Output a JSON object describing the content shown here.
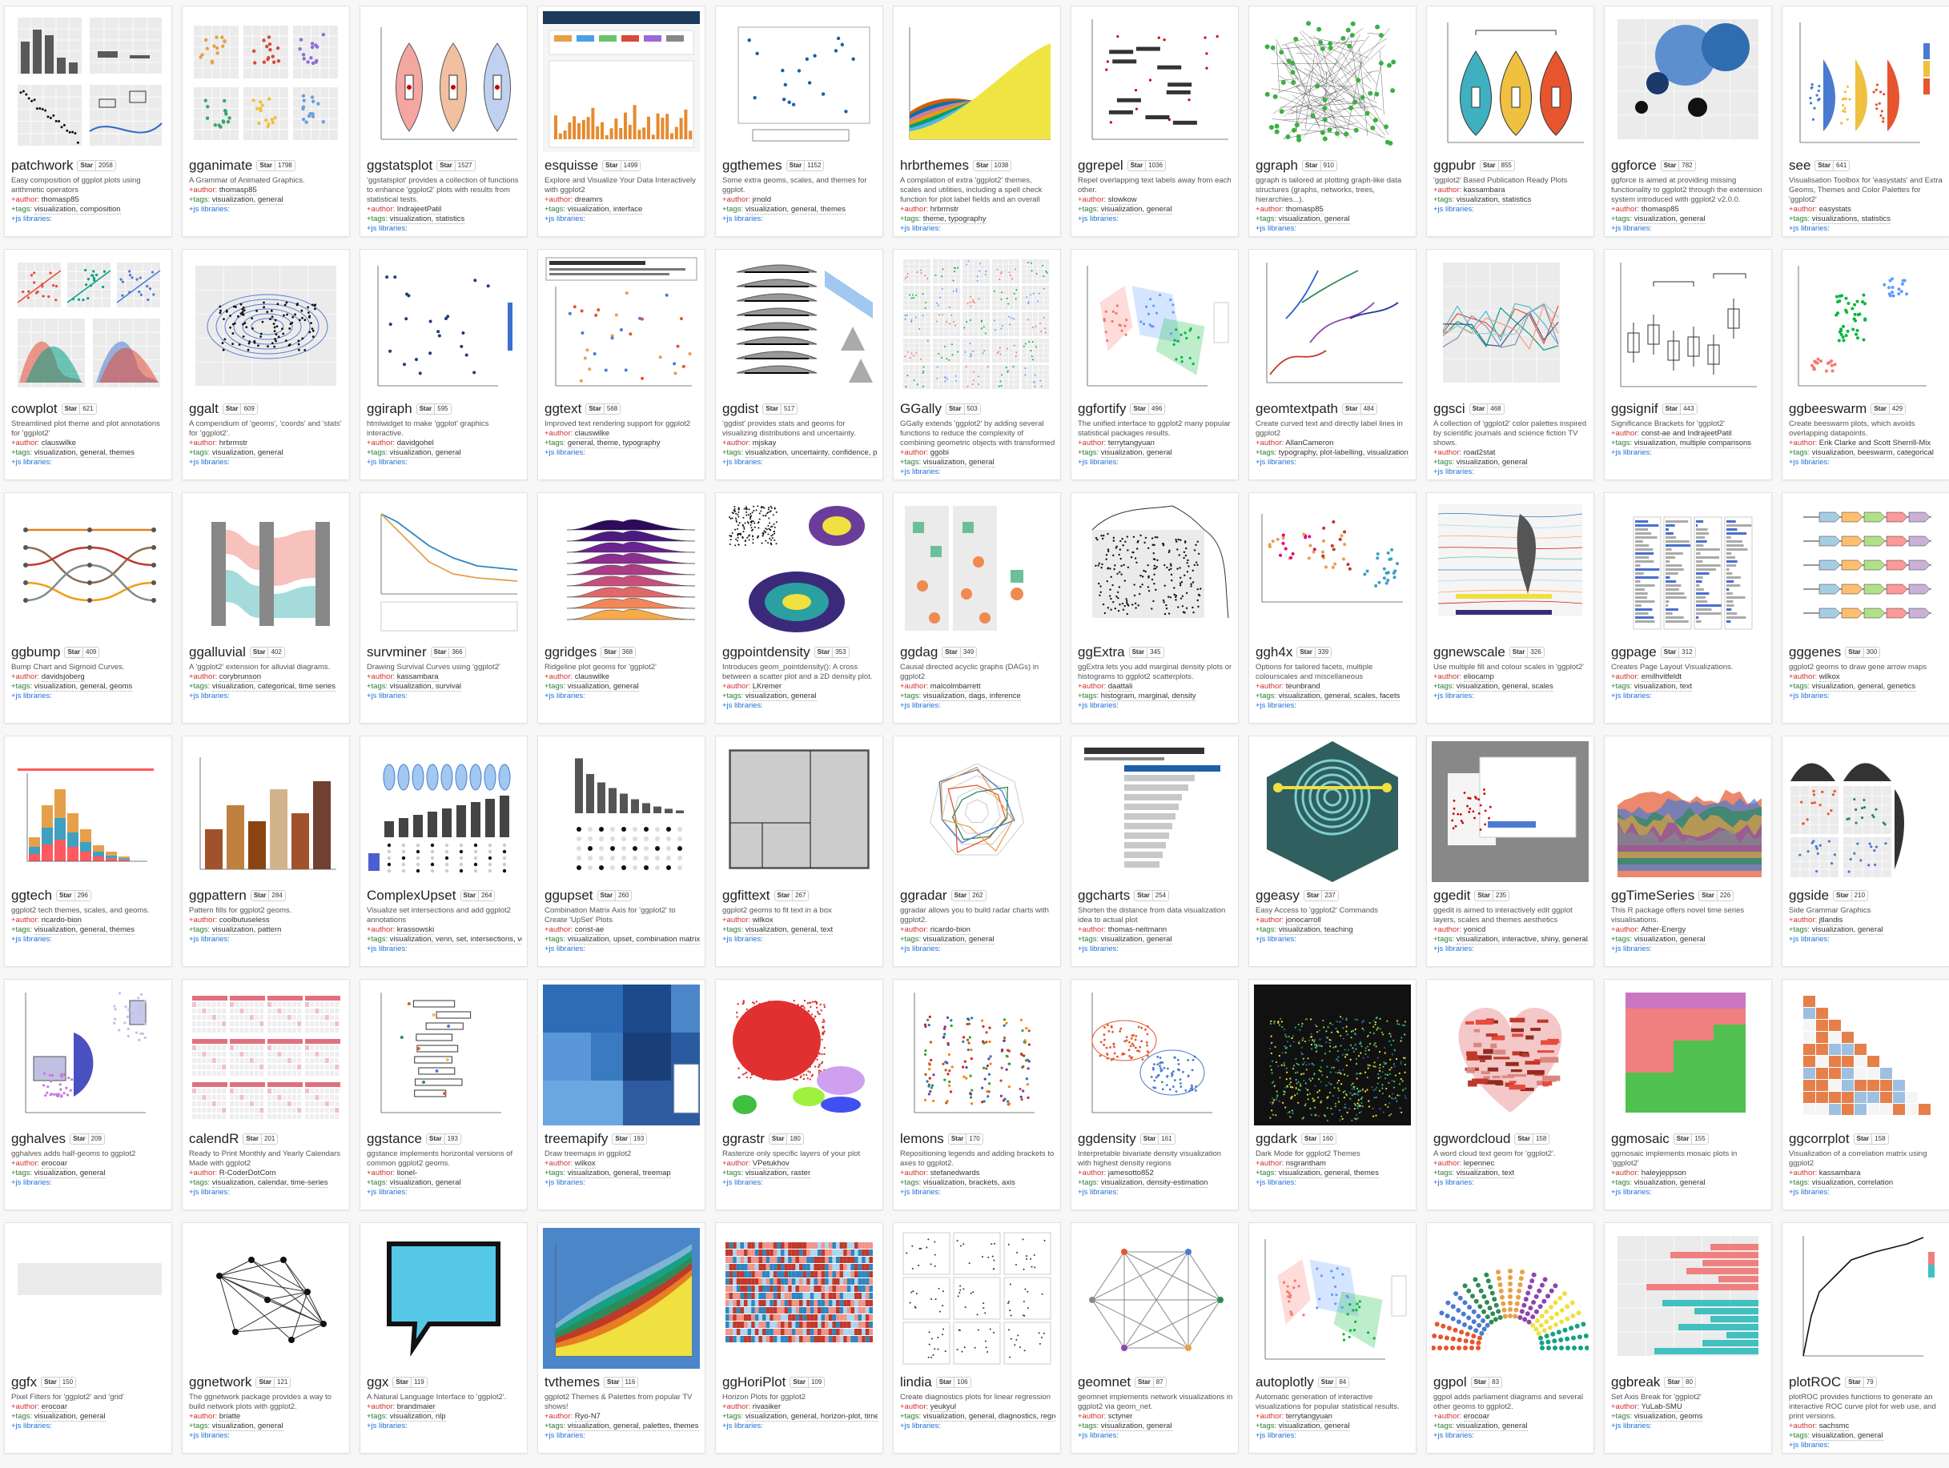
{
  "star_label": "Star",
  "labels": {
    "author": "+author:",
    "tags": "+tags:",
    "js": "+js libraries:"
  },
  "cards": [
    {
      "name": "patchwork",
      "stars": "2058",
      "desc": "Easy composition of ggplot plots using arithmetic operators",
      "author": "thomasp85",
      "tags": "visualization, composition",
      "thumb": "patch"
    },
    {
      "name": "gganimate",
      "stars": "1798",
      "desc": "A Grammar of Animated Graphics.",
      "author": "thomasp85",
      "tags": "visualization, general",
      "thumb": "facets"
    },
    {
      "name": "ggstatsplot",
      "stars": "1527",
      "desc": "'ggstatsplot' provides a collection of functions to enhance 'ggplot2' plots with results from statistical tests.",
      "author": "IndrajeetPatil",
      "tags": "visualization, statistics",
      "thumb": "violin"
    },
    {
      "name": "esquisse",
      "stars": "1499",
      "desc": "Explore and Visualize Your Data Interactively with ggplot2",
      "author": "dreamrs",
      "tags": "visualization, interface",
      "thumb": "app"
    },
    {
      "name": "ggthemes",
      "stars": "1152",
      "desc": "Some extra geoms, scales, and themes for ggplot.",
      "author": "jrnold",
      "tags": "visualization, general, themes",
      "thumb": "scatter-blue"
    },
    {
      "name": "hrbrthemes",
      "stars": "1038",
      "desc": "A compilation of extra 'ggplot2' themes, scales and utilities, including a spell check function for plot label fields and an overall emphasis on typography.",
      "author": "hrbrmstr",
      "tags": "theme, typography",
      "thumb": "area"
    },
    {
      "name": "ggrepel",
      "stars": "1036",
      "desc": "Repel overlapping text labels away from each other.",
      "author": "slowkow",
      "tags": "visualization, general",
      "thumb": "repel"
    },
    {
      "name": "ggraph",
      "stars": "910",
      "desc": "ggraph is tailored at plotting graph-like data structures (graphs, networks, trees, hierarchies...).",
      "author": "thomasp85",
      "tags": "visualization, general",
      "thumb": "graph-green"
    },
    {
      "name": "ggpubr",
      "stars": "855",
      "desc": "'ggplot2' Based Publication Ready Plots",
      "author": "kassambara",
      "tags": "visualization, statistics",
      "thumb": "violin3"
    },
    {
      "name": "ggforce",
      "stars": "782",
      "desc": "ggforce is aimed at providing missing functionality to ggplot2 through the extension system introduced with ggplot2 v2.0.0.",
      "author": "thomasp85",
      "tags": "visualization, general",
      "thumb": "bubbles"
    },
    {
      "name": "see",
      "stars": "641",
      "desc": "Visualisation Toolbox for 'easystats' and Extra Geoms, Themes and Color Palettes for 'ggplot2'",
      "author": "easystats",
      "tags": "visualizations, statistics",
      "thumb": "halfviolin"
    },
    {
      "name": "cowplot",
      "stars": "621",
      "desc": "Streamlined plot theme and plot annotations for 'ggplot2'",
      "author": "clauswilke",
      "tags": "visualization, general, themes",
      "thumb": "cow"
    },
    {
      "name": "ggalt",
      "stars": "609",
      "desc": "A compendium of 'geoms', 'coords' and 'stats' for 'ggplot2'.",
      "author": "hrbrmstr",
      "tags": "visualization, general",
      "thumb": "contour"
    },
    {
      "name": "ggiraph",
      "stars": "595",
      "desc": "htmlwidget to make 'ggplot' graphics interactive.",
      "author": "davidgohel",
      "tags": "visualization, general",
      "thumb": "scatter-navy"
    },
    {
      "name": "ggtext",
      "stars": "568",
      "desc": "Improved text rendering support for ggplot2",
      "author": "clauswilke",
      "tags": "general, theme, typography",
      "thumb": "text-scatter"
    },
    {
      "name": "ggdist",
      "stars": "517",
      "desc": "'ggdist' provides stats and geoms for visualizing distributions and uncertainty.",
      "author": "mjskay",
      "tags": "visualization, uncertainty, confidence, probability",
      "thumb": "dist"
    },
    {
      "name": "GGally",
      "stars": "503",
      "desc": "GGally extends 'ggplot2' by adding several functions to reduce the complexity of combining geometric objects with transformed data.",
      "author": "ggobi",
      "tags": "visualization, general",
      "thumb": "matrix"
    },
    {
      "name": "ggfortify",
      "stars": "496",
      "desc": "The unified interface to ggplot2 many popular statistical packages results.",
      "author": "terrytangyuan",
      "tags": "visualization, general",
      "thumb": "pca"
    },
    {
      "name": "geomtextpath",
      "stars": "484",
      "desc": "Create curved text and directly label lines in ggplot2",
      "author": "AllanCameron",
      "tags": "typography, plot-labelling, visualization",
      "thumb": "textpath"
    },
    {
      "name": "ggsci",
      "stars": "468",
      "desc": "A collection of 'ggplot2' color palettes inspired by scientific journals and science fiction TV shows.",
      "author": "road2stat",
      "tags": "visualization, general",
      "thumb": "lines"
    },
    {
      "name": "ggsignif",
      "stars": "443",
      "desc": "Significance Brackets for 'ggplot2'",
      "author": "const-ae and IndrajeetPatil",
      "tags": "visualization, multiple comparisons",
      "thumb": "boxes"
    },
    {
      "name": "ggbeeswarm",
      "stars": "429",
      "desc": "Create beeswarm plots, which avoids overlapping datapoints.",
      "author": "Erik Clarke and Scott Sherrill-Mix",
      "tags": "visualization, beeswarm, categorical",
      "thumb": "beeswarm"
    },
    {
      "name": "ggbump",
      "stars": "409",
      "desc": "Bump Chart and Sigmoid Curves.",
      "author": "davidsjoberg",
      "tags": "visualization, general, geoms",
      "thumb": "bump"
    },
    {
      "name": "ggalluvial",
      "stars": "402",
      "desc": "A 'ggplot2' extension for alluvial diagrams.",
      "author": "corybrunson",
      "tags": "visualization, categorical, time series",
      "thumb": "alluvial"
    },
    {
      "name": "survminer",
      "stars": "366",
      "desc": "Drawing Survival Curves using 'ggplot2'",
      "author": "kassambara",
      "tags": "visualization, survival",
      "thumb": "survival"
    },
    {
      "name": "ggridges",
      "stars": "368",
      "desc": "Ridgeline plot geoms for 'ggplot2'",
      "author": "clauswilke",
      "tags": "visualization, general",
      "thumb": "ridges"
    },
    {
      "name": "ggpointdensity",
      "stars": "353",
      "desc": "Introduces geom_pointdensity(): A cross between a scatter plot and a 2D density plot.",
      "author": "LKremer",
      "tags": "visualization, general",
      "thumb": "pointdensity"
    },
    {
      "name": "ggdag",
      "stars": "349",
      "desc": "Causal directed acyclic graphs (DAGs) in ggplot2",
      "author": "malcolmbarrett",
      "tags": "visualization, dags, inference",
      "thumb": "dag"
    },
    {
      "name": "ggExtra",
      "stars": "345",
      "desc": "ggExtra lets you add marginal density plots or histograms to ggplot2 scatterplots.",
      "author": "daattali",
      "tags": "histogram, marginal, density",
      "thumb": "marginal"
    },
    {
      "name": "ggh4x",
      "stars": "339",
      "desc": "Options for tailored facets, multiple colourscales and miscellaneous",
      "author": "teunbrand",
      "tags": "visualization, general, scales, facets",
      "thumb": "h4x"
    },
    {
      "name": "ggnewscale",
      "stars": "326",
      "desc": "Use multiple fill and colour scales in 'ggplot2'",
      "author": "eliocamp",
      "tags": "visualization, general, scales",
      "thumb": "map"
    },
    {
      "name": "ggpage",
      "stars": "312",
      "desc": "Creates Page Layout Visualizations.",
      "author": "emilhvitfeldt",
      "tags": "visualization, text",
      "thumb": "pages"
    },
    {
      "name": "gggenes",
      "stars": "300",
      "desc": "ggplot2 geoms to draw gene arrow maps",
      "author": "wilkox",
      "tags": "visualization, general, genetics",
      "thumb": "genes"
    },
    {
      "name": "ggtech",
      "stars": "296",
      "desc": "ggplot2 tech themes, scales, and geoms.",
      "author": "ricardo-bion",
      "tags": "visualization, general, themes",
      "thumb": "airbnb"
    },
    {
      "name": "ggpattern",
      "stars": "284",
      "desc": "Pattern fills for ggplot2 geoms.",
      "author": "coolbutuseless",
      "tags": "visualization, pattern",
      "thumb": "pattern"
    },
    {
      "name": "ComplexUpset",
      "stars": "264",
      "desc": "Visualize set intersections and add ggplot2 annotations",
      "author": "krassowski",
      "tags": "visualization, venn, set, intersections, venn-diagram, upset",
      "thumb": "upsetx"
    },
    {
      "name": "ggupset",
      "stars": "260",
      "desc": "Combination Matrix Axis for 'ggplot2' to Create 'UpSet' Plots",
      "author": "const-ae",
      "tags": "visualization, upset, combination matrix",
      "thumb": "upset"
    },
    {
      "name": "ggfittext",
      "stars": "267",
      "desc": "ggplot2 geoms to fit text in a box",
      "author": "wilkox",
      "tags": "visualization, general, text",
      "thumb": "fittext"
    },
    {
      "name": "ggradar",
      "stars": "262",
      "desc": "ggradar allows you to build radar charts with ggplot2.",
      "author": "ricardo-bion",
      "tags": "visualization, general",
      "thumb": "radar"
    },
    {
      "name": "ggcharts",
      "stars": "254",
      "desc": "Shorten the distance from data visualization idea to actual plot",
      "author": "thomas-neitmann",
      "tags": "visualization, general",
      "thumb": "hbar"
    },
    {
      "name": "ggeasy",
      "stars": "237",
      "desc": "Easy Access to 'ggplot2' Commands",
      "author": "jonocarroll",
      "tags": "visualization, teaching",
      "thumb": "ggeasy"
    },
    {
      "name": "ggedit",
      "stars": "235",
      "desc": "ggedit is aimed to interactively edit ggplot layers, scales and themes aesthetics",
      "author": "yonicd",
      "tags": "visualization, interactive, shiny, general, themes",
      "thumb": "edit"
    },
    {
      "name": "ggTimeSeries",
      "stars": "226",
      "desc": "This R package offers novel time series visualisations.",
      "author": "Ather-Energy",
      "tags": "visualization, general",
      "thumb": "stream"
    },
    {
      "name": "ggside",
      "stars": "210",
      "desc": "Side Grammar Graphics",
      "author": "jtlandis",
      "tags": "visualization, general",
      "thumb": "side"
    },
    {
      "name": "gghalves",
      "stars": "209",
      "desc": "gghalves adds half-geoms to ggplot2",
      "author": "erocoar",
      "tags": "visualization, general",
      "thumb": "halves"
    },
    {
      "name": "calendR",
      "stars": "201",
      "desc": "Ready to Print Monthly and Yearly Calendars Made with ggplot2",
      "author": "R-CoderDotCom",
      "tags": "visualization, calendar, time-series",
      "thumb": "calendar"
    },
    {
      "name": "ggstance",
      "stars": "193",
      "desc": "ggstance implements horizontal versions of common ggplot2 geoms.",
      "author": "lionel-",
      "tags": "visualization, general",
      "thumb": "stance"
    },
    {
      "name": "treemapify",
      "stars": "193",
      "desc": "Draw treemaps in ggplot2",
      "author": "wilkox",
      "tags": "visualization, general, treemap",
      "thumb": "treemap"
    },
    {
      "name": "ggrastr",
      "stars": "180",
      "desc": "Rasterize only specific layers of your plot",
      "author": "VPetukhov",
      "tags": "visualization, raster",
      "thumb": "rastr"
    },
    {
      "name": "lemons",
      "stars": "170",
      "desc": "Repositioning legends and adding brackets to axes to ggplot2.",
      "author": "stefanedwards",
      "tags": "visualization, brackets, axis",
      "thumb": "lemons"
    },
    {
      "name": "ggdensity",
      "stars": "161",
      "desc": "Interpretable bivariate density visualization with highest density regions",
      "author": "jamesotto852",
      "tags": "visualization, density-estimation",
      "thumb": "density"
    },
    {
      "name": "ggdark",
      "stars": "160",
      "desc": "Dark Mode for ggplot2 Themes",
      "author": "nsgrantham",
      "tags": "visualization, general, themes",
      "thumb": "dark"
    },
    {
      "name": "ggwordcloud",
      "stars": "158",
      "desc": "A word cloud text geom for 'ggplot2'.",
      "author": "lepennec",
      "tags": "visualization, text",
      "thumb": "wordcloud"
    },
    {
      "name": "ggmosaic",
      "stars": "155",
      "desc": "ggmosaic implements mosaic plots in 'ggplot2'",
      "author": "haleyjeppson",
      "tags": "visualization, general",
      "thumb": "mosaic"
    },
    {
      "name": "ggcorrplot",
      "stars": "158",
      "desc": "Visualization of a correlation matrix using ggplot2",
      "author": "kassambara",
      "tags": "visualization, correlation",
      "thumb": "corr"
    },
    {
      "name": "ggfx",
      "stars": "150",
      "desc": "Pixel Filters for 'ggplot2' and 'grid'",
      "author": "erocoar",
      "tags": "visualization, general",
      "thumb": "ggfx"
    },
    {
      "name": "ggnetwork",
      "stars": "121",
      "desc": "The ggnetwork package provides a way to build network plots with ggplot2.",
      "author": "briatte",
      "tags": "visualization, general",
      "thumb": "network"
    },
    {
      "name": "ggx",
      "stars": "119",
      "desc": "A Natural Language Interface to 'ggplot2'.",
      "author": "brandmaier",
      "tags": "visualization, nlp",
      "thumb": "ggx"
    },
    {
      "name": "tvthemes",
      "stars": "116",
      "desc": "ggplot2 Themes & Palettes from popular TV shows!",
      "author": "Ryo-N7",
      "tags": "visualization, general, palettes, themes",
      "thumb": "tv"
    },
    {
      "name": "ggHoriPlot",
      "stars": "109",
      "desc": "Horizon Plots for ggplot2",
      "author": "rivasiker",
      "tags": "visualization, general, horizon-plot, time-series",
      "thumb": "horizon"
    },
    {
      "name": "lindia",
      "stars": "106",
      "desc": "Create diagnostics plots for linear regression",
      "author": "yeukyul",
      "tags": "visualization, general, diagnostics, regression",
      "thumb": "lindia"
    },
    {
      "name": "geomnet",
      "stars": "87",
      "desc": "geomnet implements network visualizations in ggplot2 via geom_net.",
      "author": "sctyner",
      "tags": "visualization, general",
      "thumb": "geomnet"
    },
    {
      "name": "autoplotly",
      "stars": "84",
      "desc": "Automatic generation of interactive visualizations for popular statistical results.",
      "author": "terrytangyuan",
      "tags": "visualization, general",
      "thumb": "pca"
    },
    {
      "name": "ggpol",
      "stars": "83",
      "desc": "ggpol adds parliament diagrams and several other geoms to ggplot2.",
      "author": "erocoar",
      "tags": "visualization, general",
      "thumb": "parliament"
    },
    {
      "name": "ggbreak",
      "stars": "80",
      "desc": "Set Axis Break for 'ggplot2'",
      "author": "YuLab-SMU",
      "tags": "visualization, geoms",
      "thumb": "break"
    },
    {
      "name": "plotROC",
      "stars": "79",
      "desc": "plotROC provides functions to generate an interactive ROC curve plot for web use, and print versions.",
      "author": "sachsmc",
      "tags": "visualization, general",
      "thumb": "roc"
    }
  ]
}
